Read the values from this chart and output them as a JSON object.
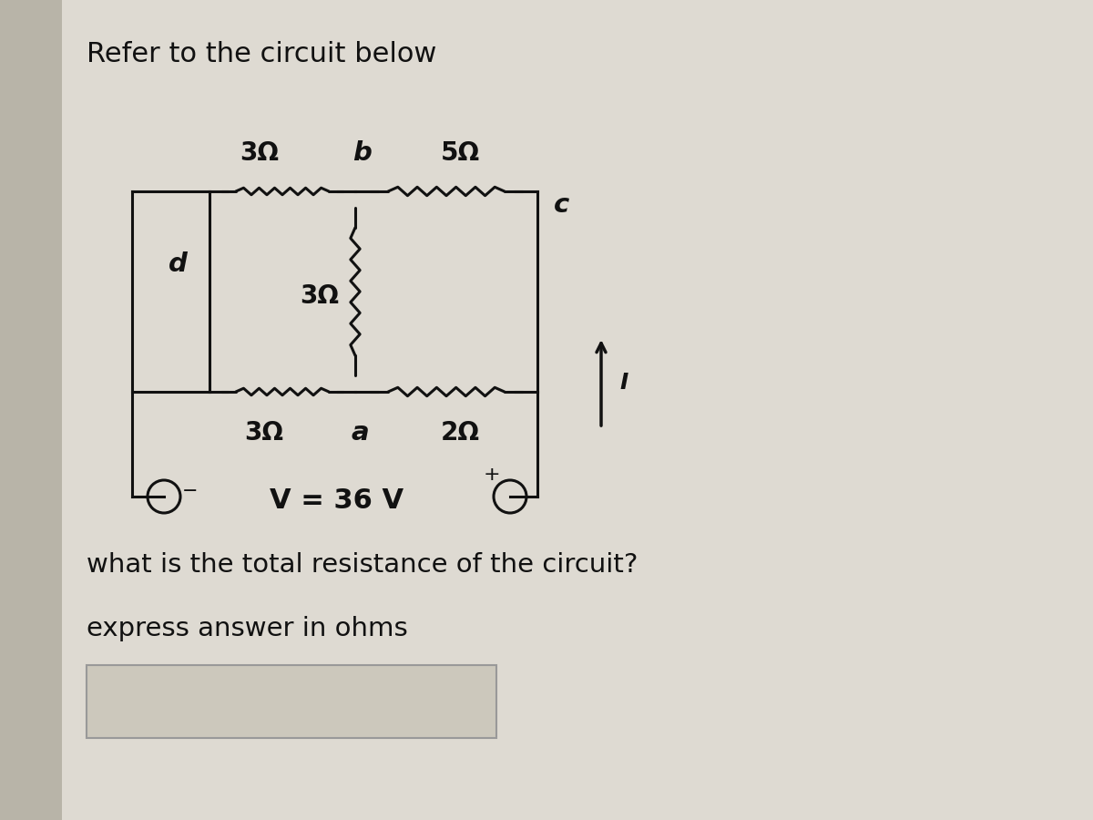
{
  "title": "Refer to the circuit below",
  "bg_color": "#d0ccc0",
  "panel_bg": "#e8e4dc",
  "inner_bg": "#e8e4dc",
  "text_color": "#111111",
  "question_text": "what is the total resistance of the circuit?",
  "express_text": "express answer in ohms",
  "voltage_text": "V = 36 V",
  "res_3_top_left": "3Ω",
  "res_5_top_right": "5Ω",
  "res_3_mid": "3Ω",
  "res_3_bot_left": "3Ω",
  "res_2_bot_right": "2Ω",
  "label_b": "b",
  "label_a": "a",
  "label_c": "c",
  "label_d": "d",
  "label_I": "I",
  "figsize": [
    12,
    9
  ],
  "dpi": 100
}
